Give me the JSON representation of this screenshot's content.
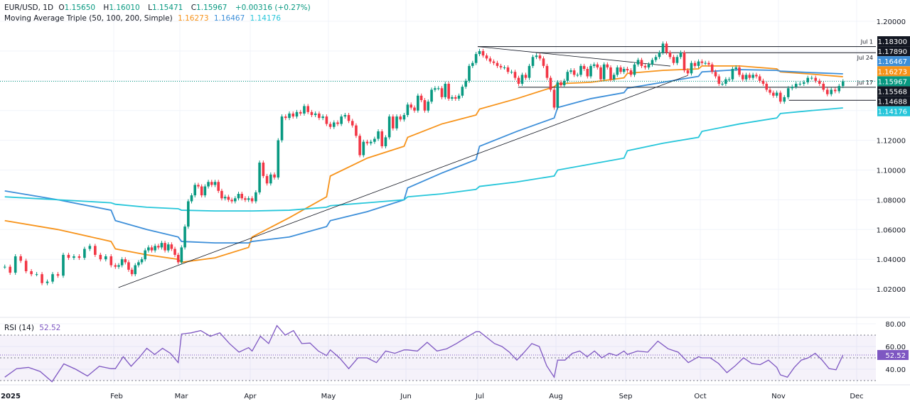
{
  "header": {
    "symbol": "EUR/USD, 1D",
    "o_label": "O",
    "o": "1.15650",
    "h_label": "H",
    "h": "1.16010",
    "l_label": "L",
    "l": "1.15471",
    "c_label": "C",
    "c": "1.15967",
    "change": "+0.00316 (+0.27%)",
    "ma_title": "Moving Average Triple (50, 100, 200, Simple)",
    "ma50": "1.16273",
    "ma100": "1.16467",
    "ma200": "1.14176"
  },
  "rsi_header": {
    "title": "RSI (14)",
    "value": "52.52"
  },
  "colors": {
    "up": "#089981",
    "down": "#f23645",
    "ma50": "#f7931a",
    "ma100": "#3d8fd9",
    "ma200": "#26c6da",
    "rsi": "#7e57c2",
    "drawing": "#131722",
    "price_line": "#089981"
  },
  "chart_data": {
    "type": "candlestick",
    "symbol": "EUR/USD",
    "timeframe": "1D",
    "ylim": [
      1.01,
      1.205
    ],
    "grid": true,
    "price_ticks": [
      "1.20000",
      "1.12000",
      "1.10000",
      "1.08000",
      "1.06000",
      "1.04000",
      "1.02000"
    ],
    "x_ticks": [
      "2025",
      "Feb",
      "Mar",
      "Apr",
      "May",
      "Jun",
      "Jul",
      "Aug",
      "Sep",
      "Oct",
      "Nov",
      "Dec"
    ],
    "months": [
      "Jan",
      "Feb",
      "Mar",
      "Apr",
      "May",
      "Jun",
      "Jul",
      "Aug",
      "Sep",
      "Oct",
      "Nov"
    ],
    "closes_by_month": {
      "Jan": [
        1.035,
        1.031,
        1.042,
        1.039,
        1.032,
        1.03,
        1.03,
        1.024,
        1.025,
        1.03,
        1.029,
        1.043,
        1.041,
        1.042,
        1.041,
        1.047,
        1.049,
        1.043,
        1.04,
        1.042,
        1.036
      ],
      "Feb": [
        1.035,
        1.036,
        1.04,
        1.038,
        1.033,
        1.03,
        1.036,
        1.038,
        1.04,
        1.046,
        1.048,
        1.046,
        1.049,
        1.048,
        1.051,
        1.046,
        1.05,
        1.047,
        1.043,
        1.038
      ],
      "Mar": [
        1.048,
        1.062,
        1.079,
        1.083,
        1.09,
        1.089,
        1.083,
        1.089,
        1.092,
        1.09,
        1.092,
        1.086,
        1.081,
        1.082,
        1.08,
        1.079,
        1.081,
        1.084,
        1.081,
        1.08,
        1.081
      ],
      "Apr": [
        1.079,
        1.085,
        1.105,
        1.096,
        1.091,
        1.097,
        1.095,
        1.12,
        1.136,
        1.135,
        1.138,
        1.136,
        1.139,
        1.138,
        1.143,
        1.139,
        1.137,
        1.138,
        1.135,
        1.136,
        1.131
      ],
      "May": [
        1.129,
        1.132,
        1.131,
        1.136,
        1.137,
        1.133,
        1.13,
        1.123,
        1.11,
        1.119,
        1.118,
        1.119,
        1.121,
        1.126,
        1.116,
        1.122,
        1.136,
        1.128,
        1.136,
        1.134,
        1.137
      ],
      "Jun": [
        1.144,
        1.142,
        1.14,
        1.15,
        1.147,
        1.14,
        1.146,
        1.154,
        1.155,
        1.155,
        1.149,
        1.158,
        1.148,
        1.149,
        1.148,
        1.15,
        1.156,
        1.16,
        1.17,
        1.172,
        1.178
      ],
      "Jul": [
        1.18,
        1.177,
        1.175,
        1.173,
        1.172,
        1.17,
        1.169,
        1.169,
        1.166,
        1.166,
        1.162,
        1.158,
        1.164,
        1.162,
        1.17,
        1.176,
        1.177,
        1.175,
        1.17,
        1.162,
        1.154,
        1.142
      ],
      "Aug": [
        1.159,
        1.157,
        1.16,
        1.166,
        1.167,
        1.164,
        1.164,
        1.17,
        1.168,
        1.163,
        1.17,
        1.171,
        1.169,
        1.161,
        1.171,
        1.169,
        1.161,
        1.164,
        1.169,
        1.166,
        1.168
      ],
      "Sep": [
        1.167,
        1.164,
        1.171,
        1.174,
        1.17,
        1.169,
        1.171,
        1.174,
        1.176,
        1.179,
        1.185,
        1.179,
        1.176,
        1.172,
        1.176,
        1.179,
        1.167,
        1.165,
        1.172,
        1.17,
        1.173
      ],
      "Oct": [
        1.172,
        1.172,
        1.171,
        1.166,
        1.163,
        1.158,
        1.158,
        1.161,
        1.161,
        1.168,
        1.169,
        1.164,
        1.161,
        1.164,
        1.162,
        1.164,
        1.163,
        1.16,
        1.158,
        1.154,
        1.152,
        1.15,
        1.152
      ],
      "Nov": [
        1.146,
        1.149,
        1.155,
        1.156,
        1.158,
        1.158,
        1.159,
        1.162,
        1.162,
        1.16,
        1.158,
        1.154,
        1.151,
        1.154,
        1.153,
        1.1565,
        1.15967
      ]
    },
    "moving_averages": [
      {
        "name": "50",
        "color_key": "ma50",
        "by_month": {
          "Jan": [
            1.066,
            1.06,
            1.052
          ],
          "Feb": [
            1.047,
            1.043,
            1.04
          ],
          "Mar": [
            1.038,
            1.041,
            1.048
          ],
          "Apr": [
            1.055,
            1.068,
            1.082
          ],
          "May": [
            1.096,
            1.108,
            1.116
          ],
          "Jun": [
            1.122,
            1.131,
            1.137
          ],
          "Jul": [
            1.141,
            1.148,
            1.156
          ],
          "Aug": [
            1.158,
            1.159,
            1.162
          ],
          "Sep": [
            1.165,
            1.167,
            1.168
          ],
          "Oct": [
            1.17,
            1.17,
            1.168
          ],
          "Nov": [
            1.166,
            1.1645,
            1.16273
          ]
        }
      },
      {
        "name": "100",
        "color_key": "ma100",
        "by_month": {
          "Jan": [
            1.086,
            1.08,
            1.073
          ],
          "Feb": [
            1.066,
            1.06,
            1.055
          ],
          "Mar": [
            1.052,
            1.051,
            1.051
          ],
          "Apr": [
            1.052,
            1.055,
            1.062
          ],
          "May": [
            1.066,
            1.072,
            1.08
          ],
          "Jun": [
            1.088,
            1.098,
            1.107
          ],
          "Jul": [
            1.116,
            1.126,
            1.135
          ],
          "Aug": [
            1.142,
            1.148,
            1.152
          ],
          "Sep": [
            1.155,
            1.159,
            1.163
          ],
          "Oct": [
            1.166,
            1.1675,
            1.167
          ],
          "Nov": [
            1.1665,
            1.1655,
            1.16467
          ]
        }
      },
      {
        "name": "200",
        "color_key": "ma200",
        "by_month": {
          "Jan": [
            1.082,
            1.08,
            1.078
          ],
          "Feb": [
            1.077,
            1.075,
            1.074
          ],
          "Mar": [
            1.073,
            1.0725,
            1.0725
          ],
          "Apr": [
            1.0725,
            1.073,
            1.075
          ],
          "May": [
            1.076,
            1.078,
            1.08
          ],
          "Jun": [
            1.082,
            1.084,
            1.087
          ],
          "Jul": [
            1.089,
            1.092,
            1.096
          ],
          "Aug": [
            1.1,
            1.104,
            1.108
          ],
          "Sep": [
            1.113,
            1.118,
            1.122
          ],
          "Oct": [
            1.126,
            1.131,
            1.135
          ],
          "Nov": [
            1.138,
            1.14,
            1.14176
          ]
        }
      }
    ],
    "trendlines": [
      {
        "from": [
          "2025-02-03",
          1.021
        ],
        "to": [
          "2025-09-26",
          1.1636
        ]
      },
      {
        "from": [
          "2025-07-01",
          1.183
        ],
        "to": [
          "2025-09-19",
          1.1699
        ]
      }
    ],
    "levels": [
      {
        "label": "Jul 1",
        "from": "2025-07-01",
        "price": 1.183,
        "badge": "1.18300"
      },
      {
        "label": "Jul 24",
        "from": "2025-07-24",
        "price": 1.1789,
        "badge": "1.17890"
      },
      {
        "label": "Jul 17",
        "from": "2025-07-17",
        "price": 1.15568,
        "badge": "1.15568"
      },
      {
        "label": "",
        "from": "2025-11-05",
        "price": 1.14688,
        "badge": "1.14688"
      }
    ],
    "badges": [
      {
        "text": "1.18300",
        "bg": "#131722"
      },
      {
        "text": "1.17890",
        "bg": "#131722"
      },
      {
        "text": "1.16467",
        "bg": "#3d8fd9"
      },
      {
        "text": "1.16273",
        "bg": "#f7931a"
      },
      {
        "text": "1.15967",
        "bg": "#089981"
      },
      {
        "text": "1.15568",
        "bg": "#131722"
      },
      {
        "text": "1.14688",
        "bg": "#131722"
      },
      {
        "text": "1.14176",
        "bg": "#26c6da"
      }
    ],
    "last_price": 1.15967,
    "rsi": {
      "period": 14,
      "ticks": [
        "80.00",
        "60.00",
        "40.00"
      ],
      "bands": [
        70,
        50,
        30
      ],
      "last": "52.52",
      "by_month": {
        "Jan": [
          33,
          40.5,
          41.6,
          38,
          29,
          44.7,
          40,
          34,
          42.6,
          40.5
        ],
        "Feb": [
          40.5,
          51,
          42.6,
          50,
          58.4,
          53,
          58.4,
          54,
          45.8
        ],
        "Mar": [
          71,
          72,
          74,
          69,
          72,
          62.6,
          55,
          59
        ],
        "Apr": [
          56,
          69,
          62.6,
          78.4,
          70,
          74,
          62.6,
          63,
          56,
          52
        ],
        "May": [
          57,
          50,
          40.5,
          50,
          50,
          45.8,
          56,
          54,
          57
        ],
        "Jun": [
          57,
          56,
          63.7,
          56,
          58,
          62.6,
          68,
          73
        ],
        "Jul": [
          73,
          67.8,
          62.6,
          60,
          55,
          48,
          55,
          62.6,
          60,
          43,
          33
        ],
        "Aug": [
          48,
          48,
          54,
          56,
          51,
          56,
          50,
          54,
          52,
          56
        ],
        "Sep": [
          53,
          56,
          55,
          64.7,
          58,
          55,
          45.8,
          51
        ],
        "Oct": [
          50,
          50,
          45,
          37,
          43,
          50,
          45,
          44,
          48,
          41.6
        ],
        "Nov": [
          35,
          33,
          41.6,
          48,
          50,
          54,
          48,
          40.5,
          39.5,
          52.52
        ]
      }
    }
  }
}
